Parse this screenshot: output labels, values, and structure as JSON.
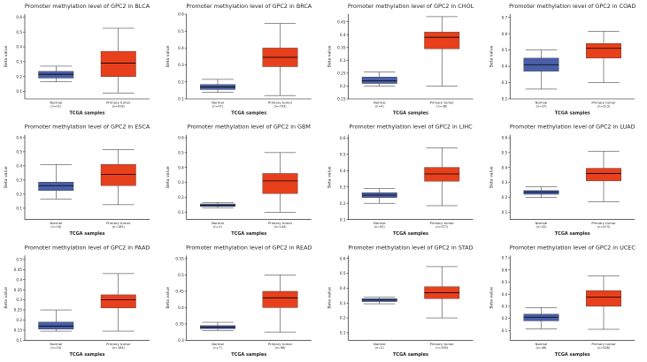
{
  "colors": {
    "normal_box": "#4a5fa8",
    "tumor_box": "#e8401c",
    "median": "#000000",
    "axis": "#000000",
    "text": "#222222"
  },
  "chart_data": [
    {
      "type": "boxplot",
      "title": "Promoter methylation level of GPC2 in BLCA",
      "ylabel": "Beta value",
      "xlabel": "TCGA samples",
      "yticks": [
        "0.1",
        "0.2",
        "0.3",
        "0.4",
        "0.5",
        "0.6"
      ],
      "ylim": [
        0.05,
        0.62
      ],
      "groups": [
        {
          "label": "Normal",
          "n": "(n=21)",
          "min": 0.165,
          "q1": 0.19,
          "median": 0.215,
          "q3": 0.235,
          "max": 0.27
        },
        {
          "label": "Primary tumor",
          "n": "(n=418)",
          "min": 0.09,
          "q1": 0.2,
          "median": 0.29,
          "q3": 0.37,
          "max": 0.525
        }
      ]
    },
    {
      "type": "boxplot",
      "title": "Promoter methylation level of GPC2 in BRCA",
      "ylabel": "Beta value",
      "xlabel": "TCGA samples",
      "yticks": [
        "0.1",
        "0.2",
        "0.3",
        "0.4",
        "0.5",
        "0.6"
      ],
      "ylim": [
        0.1,
        0.6
      ],
      "groups": [
        {
          "label": "Normal",
          "n": "(n=97)",
          "min": 0.14,
          "q1": 0.155,
          "median": 0.17,
          "q3": 0.185,
          "max": 0.215
        },
        {
          "label": "Primary tumor",
          "n": "(n=793)",
          "min": 0.12,
          "q1": 0.29,
          "median": 0.345,
          "q3": 0.4,
          "max": 0.545
        }
      ]
    },
    {
      "type": "boxplot",
      "title": "Promoter methylation level of GPC2 in CHOL",
      "ylabel": "Beta value",
      "xlabel": "TCGA samples",
      "yticks": [
        "0.15",
        "0.2",
        "0.25",
        "0.3",
        "0.35",
        "0.4",
        "0.45"
      ],
      "ylim": [
        0.15,
        0.48
      ],
      "groups": [
        {
          "label": "Normal",
          "n": "(n=9)",
          "min": 0.2,
          "q1": 0.21,
          "median": 0.22,
          "q3": 0.235,
          "max": 0.255
        },
        {
          "label": "Primary tumor",
          "n": "(n=36)",
          "min": 0.2,
          "q1": 0.345,
          "median": 0.39,
          "q3": 0.41,
          "max": 0.47
        }
      ]
    },
    {
      "type": "boxplot",
      "title": "Promoter methylation level of GPC2 in COAD",
      "ylabel": "Beta value",
      "xlabel": "TCGA samples",
      "yticks": [
        "0.2",
        "0.3",
        "0.4",
        "0.5",
        "0.6",
        "0.7"
      ],
      "ylim": [
        0.2,
        0.72
      ],
      "groups": [
        {
          "label": "Normal",
          "n": "(n=37)",
          "min": 0.26,
          "q1": 0.37,
          "median": 0.41,
          "q3": 0.45,
          "max": 0.5
        },
        {
          "label": "Primary tumor",
          "n": "(n=313)",
          "min": 0.3,
          "q1": 0.45,
          "median": 0.51,
          "q3": 0.54,
          "max": 0.615
        }
      ]
    },
    {
      "type": "boxplot",
      "title": "Promoter methylation level of GPC2 in ESCA",
      "ylabel": "Beta value",
      "xlabel": "TCGA samples",
      "yticks": [
        "0.1",
        "0.2",
        "0.3",
        "0.4",
        "0.5",
        "0.6"
      ],
      "ylim": [
        0.02,
        0.62
      ],
      "groups": [
        {
          "label": "Normal",
          "n": "(n=16)",
          "min": 0.165,
          "q1": 0.225,
          "median": 0.26,
          "q3": 0.285,
          "max": 0.41
        },
        {
          "label": "Primary tumor",
          "n": "(n=185)",
          "min": 0.125,
          "q1": 0.26,
          "median": 0.34,
          "q3": 0.41,
          "max": 0.515
        }
      ]
    },
    {
      "type": "boxplot",
      "title": "Promoter methylation level of GPC2 in GBM",
      "ylabel": "Beta value",
      "xlabel": "TCGA samples",
      "yticks": [
        "0.1",
        "0.2",
        "0.3",
        "0.4",
        "0.5",
        "0.6"
      ],
      "ylim": [
        0.05,
        0.62
      ],
      "groups": [
        {
          "label": "Normal",
          "n": "(n=2)",
          "min": 0.13,
          "q1": 0.138,
          "median": 0.145,
          "q3": 0.155,
          "max": 0.165
        },
        {
          "label": "Primary tumor",
          "n": "(n=140)",
          "min": 0.1,
          "q1": 0.225,
          "median": 0.31,
          "q3": 0.36,
          "max": 0.5
        }
      ]
    },
    {
      "type": "boxplot",
      "title": "Promoter methylation level of GPC2 in LIHC",
      "ylabel": "Beta value",
      "xlabel": "TCGA samples",
      "yticks": [
        "0.1",
        "0.2",
        "0.3",
        "0.4",
        "0.5",
        "0.6"
      ],
      "ylim": [
        0.1,
        0.62
      ],
      "groups": [
        {
          "label": "Normal",
          "n": "(n=50)",
          "min": 0.2,
          "q1": 0.235,
          "median": 0.25,
          "q3": 0.265,
          "max": 0.29
        },
        {
          "label": "Primary tumor",
          "n": "(n=377)",
          "min": 0.185,
          "q1": 0.335,
          "median": 0.38,
          "q3": 0.42,
          "max": 0.54
        }
      ]
    },
    {
      "type": "boxplot",
      "title": "Promoter methylation level of GPC2 in LUAD",
      "ylabel": "Beta value",
      "xlabel": "TCGA samples",
      "yticks": [
        "0.1",
        "0.2",
        "0.3",
        "0.4",
        "0.5",
        "0.6"
      ],
      "ylim": [
        0.05,
        0.62
      ],
      "groups": [
        {
          "label": "Normal",
          "n": "(n=32)",
          "min": 0.2,
          "q1": 0.22,
          "median": 0.235,
          "q3": 0.245,
          "max": 0.27
        },
        {
          "label": "Primary tumor",
          "n": "(n=473)",
          "min": 0.17,
          "q1": 0.31,
          "median": 0.36,
          "q3": 0.395,
          "max": 0.51
        }
      ]
    },
    {
      "type": "boxplot",
      "title": "Promoter methylation level of GPC2 in PAAD",
      "ylabel": "Beta value",
      "xlabel": "TCGA samples",
      "yticks": [
        "0.1",
        "0.15",
        "0.2",
        "0.25",
        "0.3",
        "0.35",
        "0.4",
        "0.45",
        "0.5"
      ],
      "ylim": [
        0.1,
        0.52
      ],
      "groups": [
        {
          "label": "Normal",
          "n": "(n=10)",
          "min": 0.145,
          "q1": 0.155,
          "median": 0.17,
          "q3": 0.19,
          "max": 0.25
        },
        {
          "label": "Primary tumor",
          "n": "(n=184)",
          "min": 0.145,
          "q1": 0.26,
          "median": 0.3,
          "q3": 0.325,
          "max": 0.43
        }
      ]
    },
    {
      "type": "boxplot",
      "title": "Promoter methylation level of GPC2 in READ",
      "ylabel": "Beta value",
      "xlabel": "TCGA samples",
      "yticks": [
        "0.3",
        "0.35",
        "0.4",
        "0.45",
        "0.5",
        "0.55"
      ],
      "ylim": [
        0.3,
        0.56
      ],
      "groups": [
        {
          "label": "Normal",
          "n": "(n=7)",
          "min": 0.33,
          "q1": 0.335,
          "median": 0.34,
          "q3": 0.345,
          "max": 0.355
        },
        {
          "label": "Primary tumor",
          "n": "(n=98)",
          "min": 0.325,
          "q1": 0.4,
          "median": 0.43,
          "q3": 0.45,
          "max": 0.5
        }
      ]
    },
    {
      "type": "boxplot",
      "title": "Promoter methylation level of GPC2 in STAD",
      "ylabel": "Beta value",
      "xlabel": "TCGA samples",
      "yticks": [
        "0.1",
        "0.2",
        "0.3",
        "0.4",
        "0.5",
        "0.6"
      ],
      "ylim": [
        0.05,
        0.62
      ],
      "groups": [
        {
          "label": "Normal",
          "n": "(n=2)",
          "min": 0.295,
          "q1": 0.31,
          "median": 0.32,
          "q3": 0.33,
          "max": 0.34
        },
        {
          "label": "Primary tumor",
          "n": "(n=395)",
          "min": 0.2,
          "q1": 0.33,
          "median": 0.37,
          "q3": 0.41,
          "max": 0.545
        }
      ]
    },
    {
      "type": "boxplot",
      "title": "Promoter methylation level of GPC2 in UCEC",
      "ylabel": "Beta value",
      "xlabel": "TCGA samples",
      "yticks": [
        "0.1",
        "0.2",
        "0.3",
        "0.4",
        "0.5",
        "0.6",
        "0.7"
      ],
      "ylim": [
        0.02,
        0.72
      ],
      "groups": [
        {
          "label": "Normal",
          "n": "(n=46)",
          "min": 0.115,
          "q1": 0.18,
          "median": 0.21,
          "q3": 0.235,
          "max": 0.29
        },
        {
          "label": "Primary tumor",
          "n": "(n=438)",
          "min": 0.11,
          "q1": 0.3,
          "median": 0.375,
          "q3": 0.43,
          "max": 0.55
        }
      ]
    }
  ]
}
